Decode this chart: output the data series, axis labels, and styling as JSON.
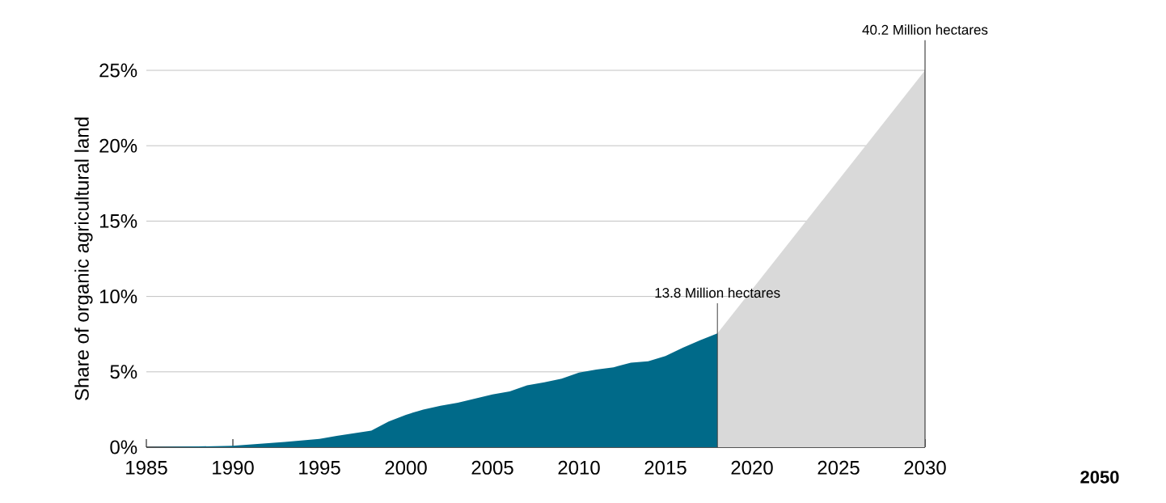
{
  "chart_data": {
    "type": "area",
    "ylabel": "Share of organic agricultural land",
    "xlim": [
      1985,
      2030
    ],
    "xticks": [
      1985,
      1990,
      1995,
      2000,
      2005,
      2010,
      2015,
      2020,
      2025,
      2030
    ],
    "ylim": [
      0,
      25
    ],
    "yticks": [
      {
        "value": 0,
        "label": "0%"
      },
      {
        "value": 5,
        "label": "5%"
      },
      {
        "value": 10,
        "label": "10%"
      },
      {
        "value": 15,
        "label": "15%"
      },
      {
        "value": 20,
        "label": "20%"
      },
      {
        "value": 25,
        "label": "25%"
      }
    ],
    "grid": "y",
    "series": [
      {
        "color": "#d9d9d9",
        "x": [
          2018,
          2030
        ],
        "values": [
          7.55,
          25
        ]
      },
      {
        "color": "#006a89",
        "x": [
          1985,
          1988,
          1990,
          1993,
          1995,
          1996,
          1998,
          1999,
          2000,
          2001,
          2002,
          2003,
          2005,
          2006,
          2007,
          2008,
          2009,
          2010,
          2011,
          2012,
          2013,
          2014,
          2015,
          2016,
          2017,
          2018
        ],
        "values": [
          0,
          0.05,
          0.1,
          0.35,
          0.55,
          0.75,
          1.1,
          1.7,
          2.15,
          2.5,
          2.75,
          2.95,
          3.5,
          3.7,
          4.1,
          4.3,
          4.55,
          4.95,
          5.15,
          5.3,
          5.6,
          5.7,
          6.05,
          6.6,
          7.1,
          7.55
        ]
      }
    ],
    "ref_lines": [
      {
        "axis": "x",
        "value": 2018,
        "label": "13.8 Million hectares",
        "color": "#404040"
      },
      {
        "axis": "x",
        "value": 2030,
        "label": "40.2 Million hectares",
        "color": "#202020"
      }
    ],
    "annotations": [
      "2050"
    ]
  }
}
